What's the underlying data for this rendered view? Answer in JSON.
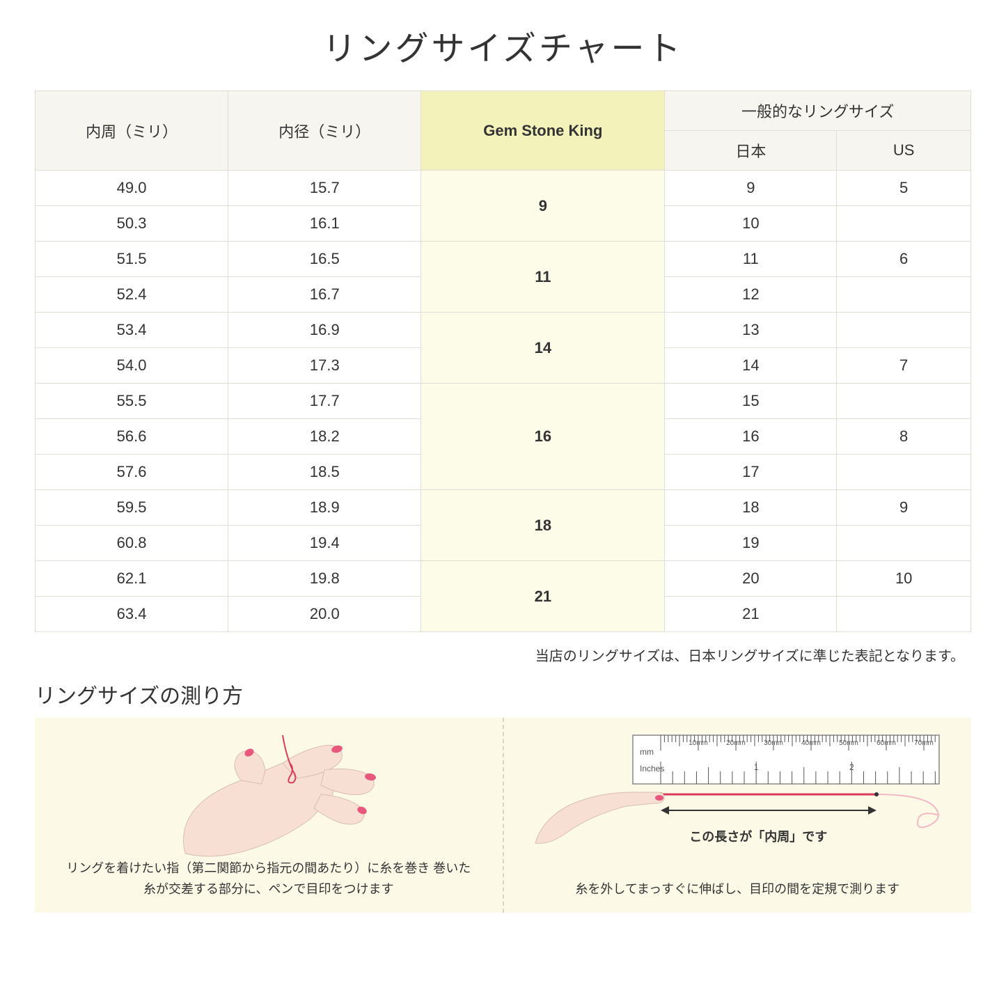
{
  "title": "リングサイズチャート",
  "table": {
    "headers": {
      "circumference": "内周（ミリ）",
      "diameter": "内径（ミリ）",
      "gemstone": "Gem Stone King",
      "general": "一般的なリングサイズ",
      "japan": "日本",
      "us": "US"
    },
    "colors": {
      "header_bg": "#f7f5ef",
      "gem_header_bg": "#f3f2bb",
      "gem_cell_bg": "#fdfce8",
      "border": "#e0ddd5"
    },
    "groups": [
      {
        "gem": "9",
        "rows": [
          {
            "c": "49.0",
            "d": "15.7",
            "jp": "9",
            "us": "5"
          },
          {
            "c": "50.3",
            "d": "16.1",
            "jp": "10",
            "us": ""
          }
        ]
      },
      {
        "gem": "11",
        "rows": [
          {
            "c": "51.5",
            "d": "16.5",
            "jp": "11",
            "us": "6"
          },
          {
            "c": "52.4",
            "d": "16.7",
            "jp": "12",
            "us": ""
          }
        ]
      },
      {
        "gem": "14",
        "rows": [
          {
            "c": "53.4",
            "d": "16.9",
            "jp": "13",
            "us": ""
          },
          {
            "c": "54.0",
            "d": "17.3",
            "jp": "14",
            "us": "7"
          }
        ]
      },
      {
        "gem": "16",
        "rows": [
          {
            "c": "55.5",
            "d": "17.7",
            "jp": "15",
            "us": ""
          },
          {
            "c": "56.6",
            "d": "18.2",
            "jp": "16",
            "us": "8"
          },
          {
            "c": "57.6",
            "d": "18.5",
            "jp": "17",
            "us": ""
          }
        ]
      },
      {
        "gem": "18",
        "rows": [
          {
            "c": "59.5",
            "d": "18.9",
            "jp": "18",
            "us": "9"
          },
          {
            "c": "60.8",
            "d": "19.4",
            "jp": "19",
            "us": ""
          }
        ]
      },
      {
        "gem": "21",
        "rows": [
          {
            "c": "62.1",
            "d": "19.8",
            "jp": "20",
            "us": "10"
          },
          {
            "c": "63.4",
            "d": "20.0",
            "jp": "21",
            "us": ""
          }
        ]
      }
    ]
  },
  "note": "当店のリングサイズは、日本リングサイズに準じた表記となります。",
  "howto": {
    "title": "リングサイズの測り方",
    "left_caption": "リングを着けたい指（第二関節から指元の間あたり）に糸を巻き\n巻いた糸が交差する部分に、ペンで目印をつけます",
    "right_caption": "糸を外してまっすぐに伸ばし、目印の間を定規で測ります",
    "ruler_label": "この長さが「内周」です",
    "ruler": {
      "mm_label": "mm",
      "inches_label": "Inches",
      "mm_ticks": [
        "10mm",
        "20mm",
        "30mm",
        "40mm",
        "50mm",
        "60mm",
        "70mm"
      ],
      "inch_ticks": [
        "1",
        "2"
      ]
    },
    "bg_color": "#fcf9e6",
    "hand_fill": "#f7dfd4",
    "nail_fill": "#e8587c",
    "thread_color": "#d93b5a"
  }
}
